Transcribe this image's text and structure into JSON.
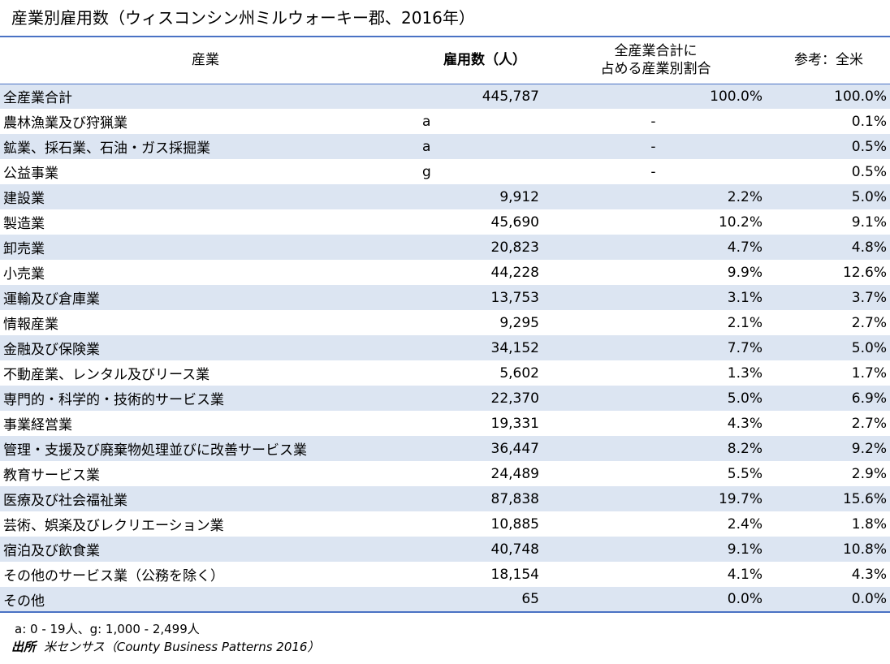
{
  "title": "産業別雇用数（ウィスコンシン州ミルウォーキー郡、2016年）",
  "headers": {
    "industry": "産業",
    "employment": "雇用数（人）",
    "share_line1": "全産業合計に",
    "share_line2": "占める産業別割合",
    "us": "参考：全米"
  },
  "rows": [
    {
      "industry": "全産業合計",
      "note": "",
      "employment": "445,787",
      "share": "100.0%",
      "us": "100.0%"
    },
    {
      "industry": "農林漁業及び狩猟業",
      "note": "a",
      "employment": "",
      "share": "-",
      "us": "0.1%"
    },
    {
      "industry": "鉱業、採石業、石油・ガス採掘業",
      "note": "a",
      "employment": "",
      "share": "-",
      "us": "0.5%"
    },
    {
      "industry": "公益事業",
      "note": "g",
      "employment": "",
      "share": "-",
      "us": "0.5%"
    },
    {
      "industry": "建設業",
      "note": "",
      "employment": "9,912",
      "share": "2.2%",
      "us": "5.0%"
    },
    {
      "industry": "製造業",
      "note": "",
      "employment": "45,690",
      "share": "10.2%",
      "us": "9.1%"
    },
    {
      "industry": "卸売業",
      "note": "",
      "employment": "20,823",
      "share": "4.7%",
      "us": "4.8%"
    },
    {
      "industry": "小売業",
      "note": "",
      "employment": "44,228",
      "share": "9.9%",
      "us": "12.6%"
    },
    {
      "industry": "運輸及び倉庫業",
      "note": "",
      "employment": "13,753",
      "share": "3.1%",
      "us": "3.7%"
    },
    {
      "industry": "情報産業",
      "note": "",
      "employment": "9,295",
      "share": "2.1%",
      "us": "2.7%"
    },
    {
      "industry": "金融及び保険業",
      "note": "",
      "employment": "34,152",
      "share": "7.7%",
      "us": "5.0%"
    },
    {
      "industry": "不動産業、レンタル及びリース業",
      "note": "",
      "employment": "5,602",
      "share": "1.3%",
      "us": "1.7%"
    },
    {
      "industry": "専門的・科学的・技術的サービス業",
      "note": "",
      "employment": "22,370",
      "share": "5.0%",
      "us": "6.9%"
    },
    {
      "industry": "事業経営業",
      "note": "",
      "employment": "19,331",
      "share": "4.3%",
      "us": "2.7%"
    },
    {
      "industry": "管理・支援及び廃棄物処理並びに改善サービス業",
      "note": "",
      "employment": "36,447",
      "share": "8.2%",
      "us": "9.2%"
    },
    {
      "industry": "教育サービス業",
      "note": "",
      "employment": "24,489",
      "share": "5.5%",
      "us": "2.9%"
    },
    {
      "industry": "医療及び社会福祉業",
      "note": "",
      "employment": "87,838",
      "share": "19.7%",
      "us": "15.6%"
    },
    {
      "industry": "芸術、娯楽及びレクリエーション業",
      "note": "",
      "employment": "10,885",
      "share": "2.4%",
      "us": "1.8%"
    },
    {
      "industry": "宿泊及び飲食業",
      "note": "",
      "employment": "40,748",
      "share": "9.1%",
      "us": "10.8%"
    },
    {
      "industry": "その他のサービス業（公務を除く）",
      "note": "",
      "employment": "18,154",
      "share": "4.1%",
      "us": "4.3%"
    },
    {
      "industry": "その他",
      "note": "",
      "employment": "65",
      "share": "0.0%",
      "us": "0.0%"
    }
  ],
  "footnote": "a: 0 - 19人、g: 1,000 - 2,499人",
  "source": {
    "label": "出所",
    "text": "米センサス（County Business Patterns 2016）"
  }
}
